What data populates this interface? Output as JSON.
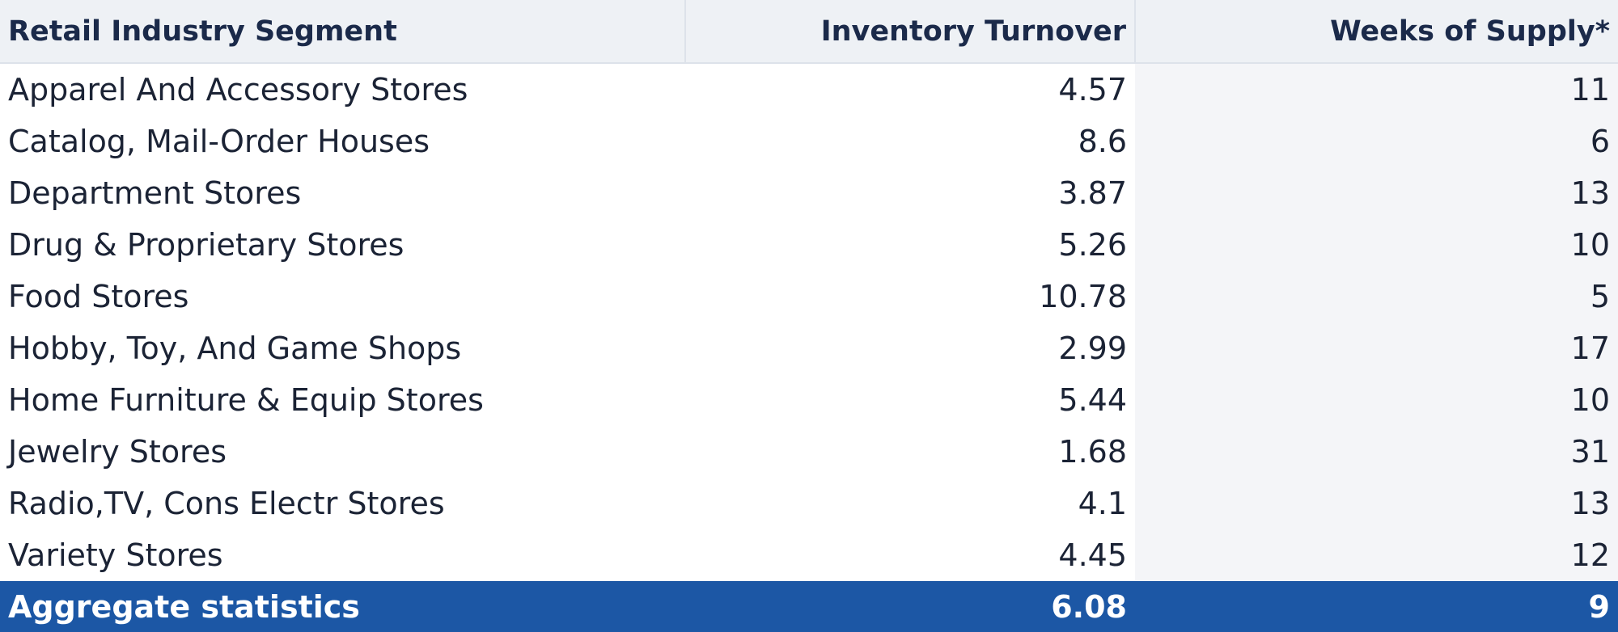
{
  "table": {
    "header": [
      "Retail Industry Segment",
      "Inventory Turnover",
      "Weeks of Supply*"
    ],
    "rows": [
      [
        "Apparel And Accessory Stores",
        4.57,
        11
      ],
      [
        "Catalog, Mail-Order Houses",
        8.6,
        6
      ],
      [
        "Department Stores",
        3.87,
        13
      ],
      [
        "Drug & Proprietary Stores",
        5.26,
        10
      ],
      [
        "Food Stores",
        10.78,
        5
      ],
      [
        "Hobby, Toy, And Game Shops",
        2.99,
        17
      ],
      [
        "Home Furniture & Equip Stores",
        5.44,
        10
      ],
      [
        "Jewelry Stores",
        1.68,
        31
      ],
      [
        "Radio,TV, Cons Electr Stores",
        4.1,
        13
      ],
      [
        "Variety Stores",
        4.45,
        12
      ]
    ],
    "footer": [
      "Aggregate statistics",
      6.08,
      9
    ]
  }
}
